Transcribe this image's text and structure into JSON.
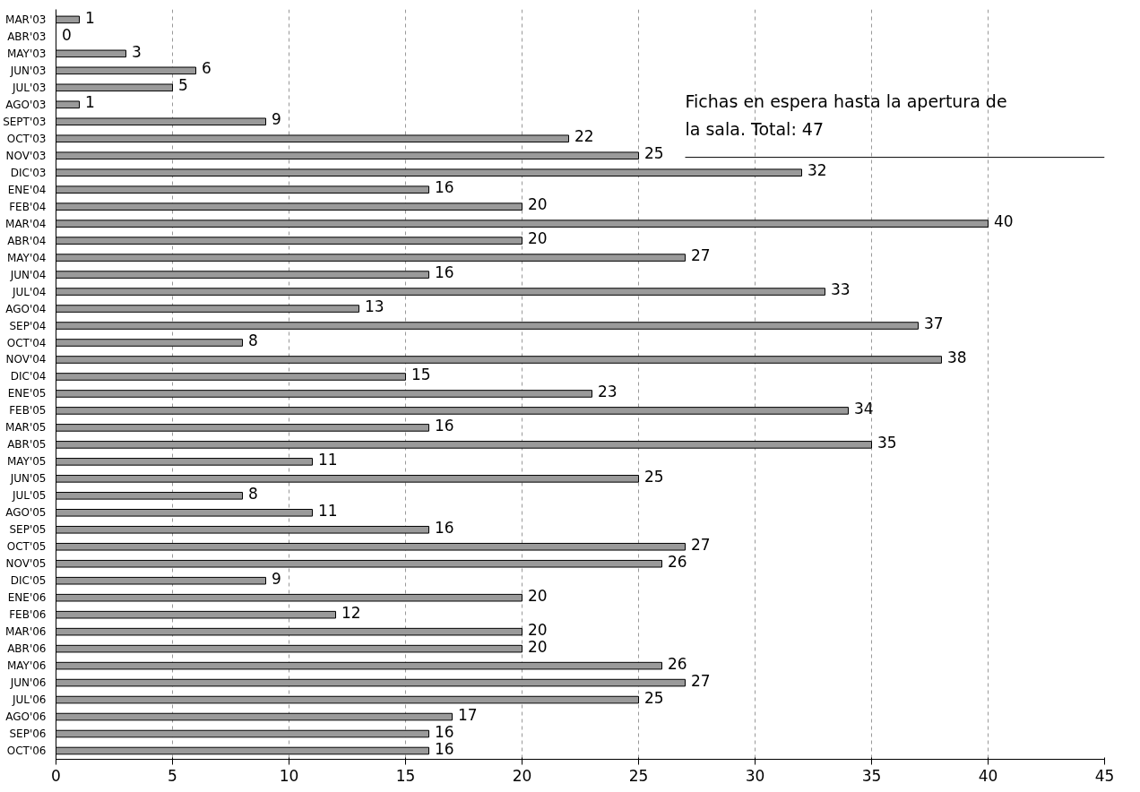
{
  "chart_data": {
    "type": "bar",
    "orientation": "horizontal",
    "categories": [
      "MAR'03",
      "ABR'03",
      "MAY'03",
      "JUN'03",
      "JUL'03",
      "AGO'03",
      "SEPT'03",
      "OCT'03",
      "NOV'03",
      "DIC'03",
      "ENE'04",
      "FEB'04",
      "MAR'04",
      "ABR'04",
      "MAY'04",
      "JUN'04",
      "JUL'04",
      "AGO'04",
      "SEP'04",
      "OCT'04",
      "NOV'04",
      "DIC'04",
      "ENE'05",
      "FEB'05",
      "MAR'05",
      "ABR'05",
      "MAY'05",
      "JUN'05",
      "JUL'05",
      "AGO'05",
      "SEP'05",
      "OCT'05",
      "NOV'05",
      "DIC'05",
      "ENE'06",
      "FEB'06",
      "MAR'06",
      "ABR'06",
      "MAY'06",
      "JUN'06",
      "JUL'06",
      "AGO'06",
      "SEP'06",
      "OCT'06"
    ],
    "values": [
      1,
      0,
      3,
      6,
      5,
      1,
      9,
      22,
      25,
      32,
      16,
      20,
      40,
      20,
      27,
      16,
      33,
      13,
      37,
      8,
      38,
      15,
      23,
      34,
      16,
      35,
      11,
      25,
      8,
      11,
      16,
      27,
      26,
      9,
      20,
      12,
      20,
      20,
      26,
      27,
      25,
      17,
      16,
      16
    ],
    "color": "#9a9a9a",
    "xlim": [
      0,
      45
    ],
    "xticks": [
      0,
      5,
      10,
      15,
      20,
      25,
      30,
      35,
      40,
      45
    ],
    "grid": "x",
    "data_labels": true,
    "annotations": [
      "Fichas en espera hasta la apertura de la sala. Total: 47"
    ]
  }
}
